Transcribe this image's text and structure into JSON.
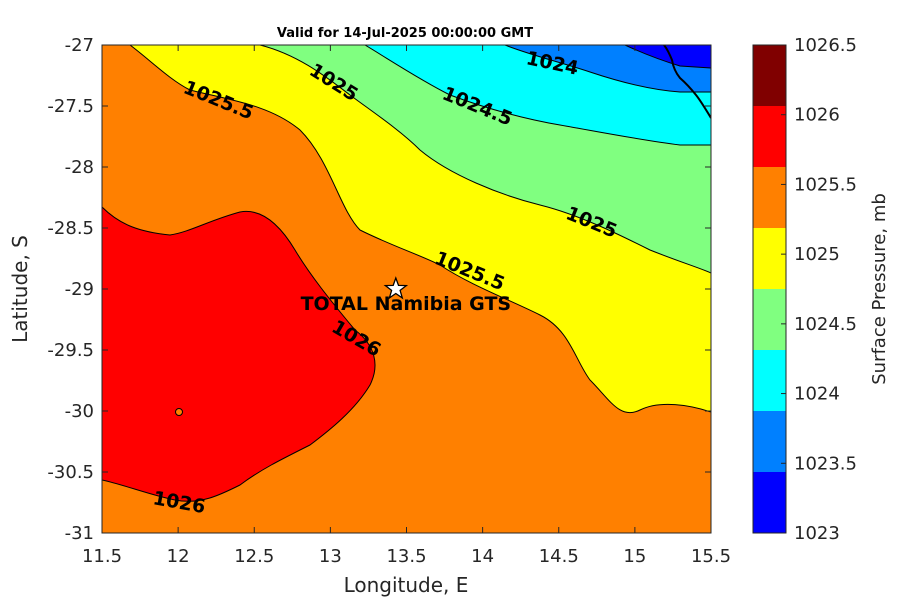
{
  "chart_data": {
    "type": "contour",
    "title": "Valid for 14-Jul-2025 00:00:00 GMT",
    "xlabel": "Longitude, E",
    "ylabel": "Latitude, S",
    "xlim": [
      11.5,
      15.5
    ],
    "ylim": [
      -31,
      -27
    ],
    "x_ticks": [
      "11.5",
      "12",
      "12.5",
      "13",
      "13.5",
      "14",
      "14.5",
      "15",
      "15.5"
    ],
    "y_ticks": [
      "-27",
      "-27.5",
      "-28",
      "-28.5",
      "-29",
      "-29.5",
      "-30",
      "-30.5",
      "-31"
    ],
    "colorbar": {
      "label": "Surface Pressure, mb",
      "range": [
        1023,
        1026.5
      ],
      "ticks": [
        "1023",
        "1023.5",
        "1024",
        "1024.5",
        "1025",
        "1025.5",
        "1026",
        "1026.5"
      ],
      "colors": [
        "#0000ff",
        "#0080ff",
        "#00ffff",
        "#80ff80",
        "#ffff00",
        "#ff8000",
        "#ff0000",
        "#800000"
      ]
    },
    "contour_levels": [
      1024,
      1024.5,
      1025,
      1025.5,
      1026
    ],
    "contour_labels": [
      {
        "text": "1024",
        "lon": 14.45,
        "lat": -27.2
      },
      {
        "text": "1024.5",
        "lon": 13.95,
        "lat": -27.55
      },
      {
        "text": "1025",
        "lon": 13.0,
        "lat": -27.35
      },
      {
        "text": "1025",
        "lon": 14.7,
        "lat": -28.5
      },
      {
        "text": "1025.5",
        "lon": 12.25,
        "lat": -27.5
      },
      {
        "text": "1025.5",
        "lon": 13.9,
        "lat": -28.9
      },
      {
        "text": "1026",
        "lon": 13.15,
        "lat": -29.45
      },
      {
        "text": "1026",
        "lon": 12.0,
        "lat": -30.8
      }
    ],
    "station": {
      "name": "TOTAL Namibia GTS",
      "lon": 13.43,
      "lat": -29.0
    },
    "local_max": {
      "lon": 12.0,
      "lat": -30.0
    }
  }
}
